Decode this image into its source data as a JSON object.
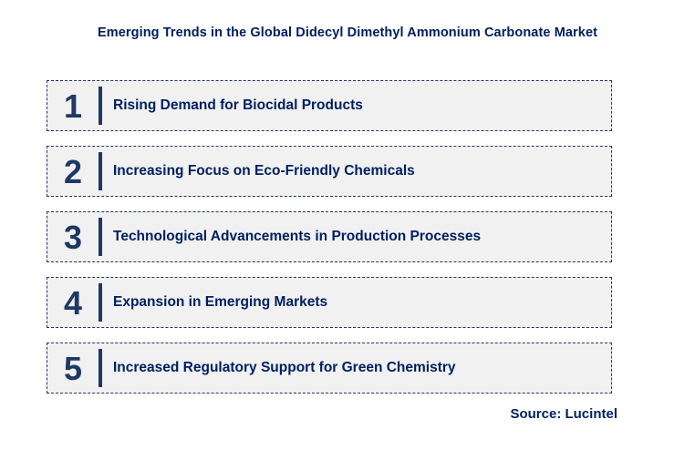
{
  "title": "Emerging Trends in the Global Didecyl Dimethyl Ammonium Carbonate Market",
  "trends": [
    {
      "number": "1",
      "label": "Rising Demand for Biocidal Products"
    },
    {
      "number": "2",
      "label": "Increasing Focus on Eco-Friendly Chemicals"
    },
    {
      "number": "3",
      "label": "Technological Advancements in Production Processes"
    },
    {
      "number": "4",
      "label": "Expansion in Emerging Markets"
    },
    {
      "number": "5",
      "label": "Increased Regulatory Support for Green Chemistry"
    }
  ],
  "source": "Source: Lucintel",
  "colors": {
    "navy_text": "#002060",
    "navy_accent": "#1f3864",
    "box_bg": "#f1f1f1",
    "background": "#ffffff"
  }
}
